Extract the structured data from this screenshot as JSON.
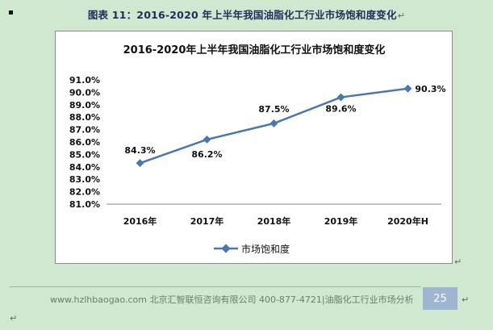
{
  "caption": "图表 11：2016-2020 年上半年我国油脂化工行业市场饱和度变化",
  "para_mark": "↵",
  "chart_data": {
    "type": "line",
    "title": "2016-2020年上半年我国油脂化工行业市场饱和度变化",
    "categories": [
      "2016年",
      "2017年",
      "2018年",
      "2019年",
      "2020年H"
    ],
    "series": [
      {
        "name": "市场饱和度",
        "values": [
          84.3,
          86.2,
          87.5,
          89.6,
          90.3
        ]
      }
    ],
    "data_labels": [
      "84.3%",
      "86.2%",
      "87.5%",
      "89.6%",
      "90.3%"
    ],
    "yticks": [
      "91.0%",
      "90.0%",
      "89.0%",
      "88.0%",
      "87.0%",
      "86.0%",
      "85.0%",
      "84.0%",
      "83.0%",
      "82.0%",
      "81.0%"
    ],
    "ylim": [
      81,
      91
    ],
    "xlabel": "",
    "ylabel": "",
    "grid": false,
    "legend": "bottom",
    "color": "#4a77b0"
  },
  "footer": {
    "text": "www.hzlhbaogao.com 北京汇智联恒咨询有限公司  400-877-4721|油脂化工行业市场分析",
    "page": "25"
  }
}
